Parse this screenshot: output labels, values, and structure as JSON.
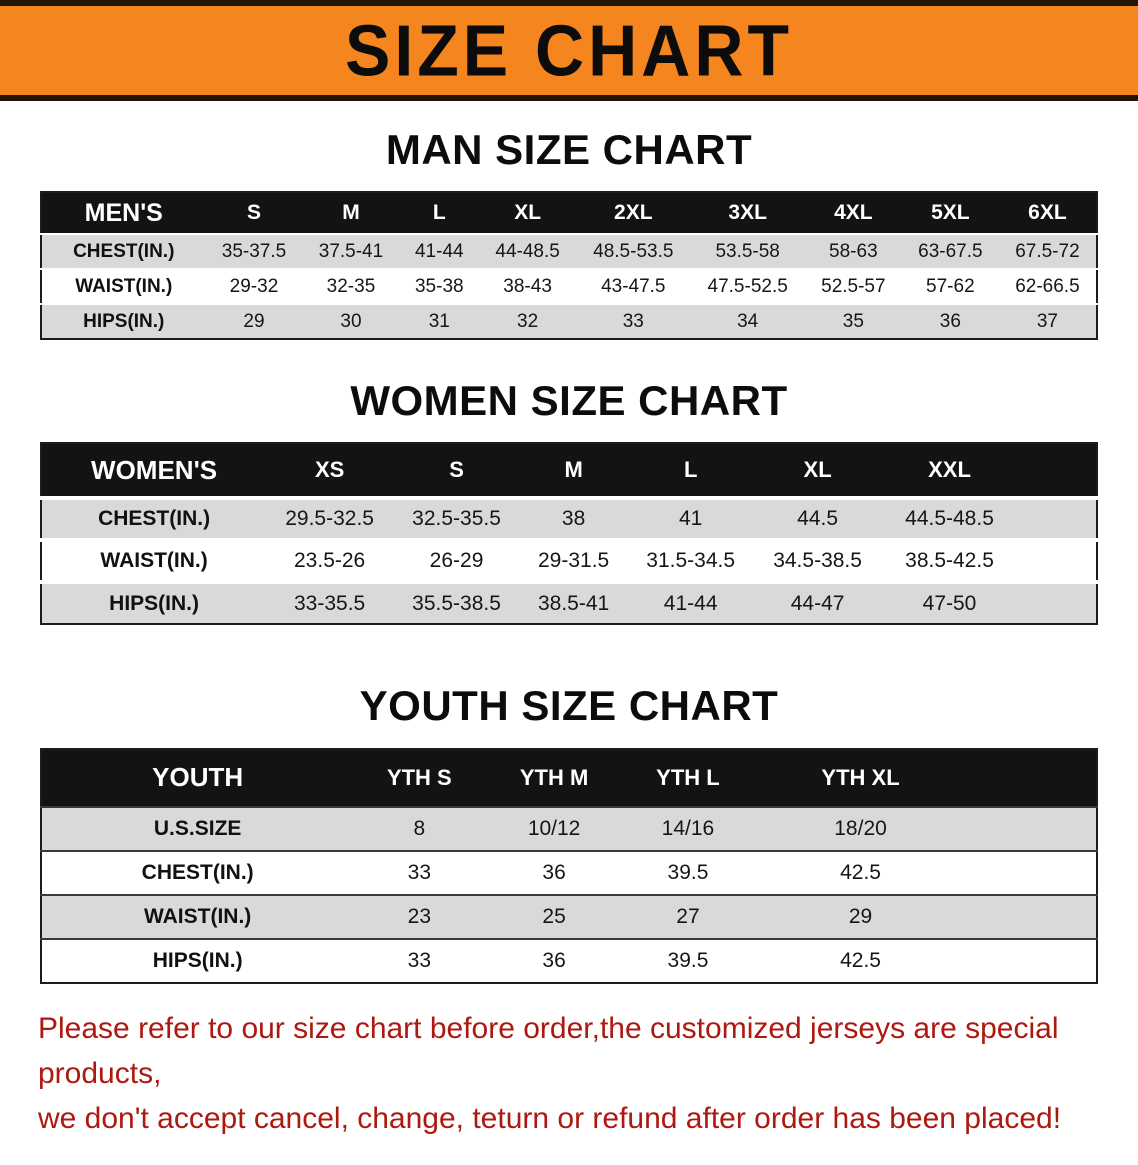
{
  "banner": {
    "title": "SIZE CHART"
  },
  "colors": {
    "banner_bg": "#f5861f",
    "banner_border": "#241403",
    "table_header_bg": "#131313",
    "row_stripe": "#d9d9d9",
    "disclaimer_text": "#ad1910"
  },
  "sections": [
    {
      "id": "men",
      "heading": "MAN SIZE CHART",
      "table": {
        "header": [
          "MEN'S",
          "S",
          "M",
          "L",
          "XL",
          "2XL",
          "3XL",
          "4XL",
          "5XL",
          "6XL"
        ],
        "rows": [
          {
            "label": "CHEST(IN.)",
            "values": [
              "35-37.5",
              "37.5-41",
              "41-44",
              "44-48.5",
              "48.5-53.5",
              "53.5-58",
              "58-63",
              "63-67.5",
              "67.5-72"
            ]
          },
          {
            "label": "WAIST(IN.)",
            "values": [
              "29-32",
              "32-35",
              "35-38",
              "38-43",
              "43-47.5",
              "47.5-52.5",
              "52.5-57",
              "57-62",
              "62-66.5"
            ]
          },
          {
            "label": "HIPS(IN.)",
            "values": [
              "29",
              "30",
              "31",
              "32",
              "33",
              "34",
              "35",
              "36",
              "37"
            ]
          }
        ]
      }
    },
    {
      "id": "women",
      "heading": "WOMEN SIZE CHART",
      "table": {
        "header": [
          "WOMEN'S",
          "XS",
          "S",
          "M",
          "L",
          "XL",
          "XXL"
        ],
        "rows": [
          {
            "label": "CHEST(IN.)",
            "values": [
              "29.5-32.5",
              "32.5-35.5",
              "38",
              "41",
              "44.5",
              "44.5-48.5"
            ]
          },
          {
            "label": "WAIST(IN.)",
            "values": [
              "23.5-26",
              "26-29",
              "29-31.5",
              "31.5-34.5",
              "34.5-38.5",
              "38.5-42.5"
            ]
          },
          {
            "label": "HIPS(IN.)",
            "values": [
              "33-35.5",
              "35.5-38.5",
              "38.5-41",
              "41-44",
              "44-47",
              "47-50"
            ]
          }
        ]
      }
    },
    {
      "id": "youth",
      "heading": "YOUTH SIZE CHART",
      "table": {
        "header": [
          "YOUTH",
          "YTH S",
          "YTH M",
          "YTH L",
          "YTH XL"
        ],
        "rows": [
          {
            "label": "U.S.SIZE",
            "values": [
              "8",
              "10/12",
              "14/16",
              "18/20"
            ]
          },
          {
            "label": "CHEST(IN.)",
            "values": [
              "33",
              "36",
              "39.5",
              "42.5"
            ]
          },
          {
            "label": "WAIST(IN.)",
            "values": [
              "23",
              "25",
              "27",
              "29"
            ]
          },
          {
            "label": "HIPS(IN.)",
            "values": [
              "33",
              "36",
              "39.5",
              "42.5"
            ]
          }
        ]
      }
    }
  ],
  "disclaimer": {
    "line1": "Please refer to our size chart before order,the customized jerseys are special products,",
    "line2": "we don't accept cancel, change, teturn or refund after order has been placed!"
  }
}
